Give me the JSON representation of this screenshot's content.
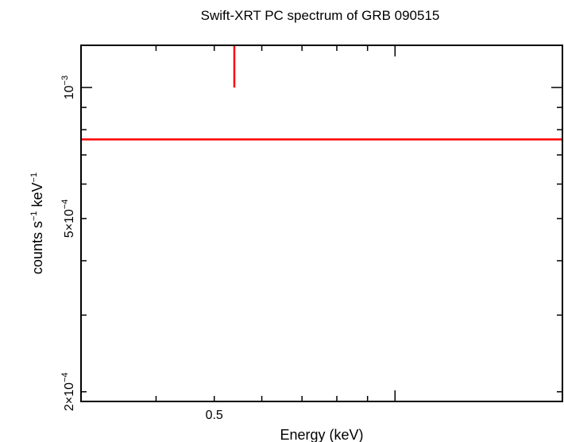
{
  "chart_data": {
    "type": "scatter",
    "title": "Swift-XRT PC spectrum of GRB 090515",
    "xlabel": "Energy (keV)",
    "ylabel": {
      "base": "counts s",
      "exp1": "−1",
      "mid": " keV",
      "exp2": "−1"
    },
    "x_scale": "log",
    "y_scale": "log",
    "xlim": [
      0.3,
      1.9
    ],
    "ylim": [
      0.00019,
      0.00125
    ],
    "x_ticks": [
      {
        "value": 0.5,
        "label": "0.5"
      }
    ],
    "y_ticks": [
      {
        "value": 0.001,
        "mantissa": "10",
        "exponent": "−3"
      },
      {
        "value": 0.0005,
        "mantissa": "5×10",
        "exponent": "−4"
      },
      {
        "value": 0.0002,
        "mantissa": "2×10",
        "exponent": "−4"
      }
    ],
    "series": [
      {
        "color": "#ff0000",
        "points": [
          {
            "x": 0.54,
            "y": 0.00076,
            "xerr": [
              0.0,
              10.0
            ],
            "yerr": [
              0.001,
              1.0
            ]
          }
        ]
      }
    ]
  }
}
